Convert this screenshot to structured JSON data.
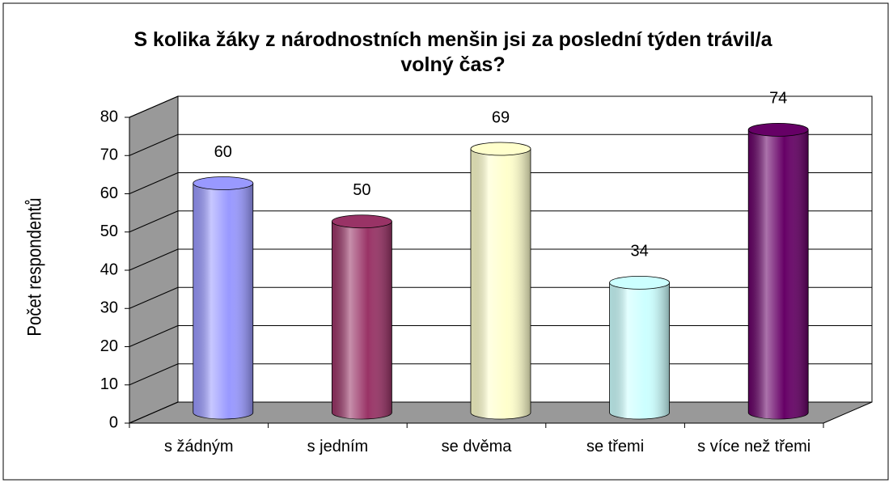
{
  "chart_data": {
    "type": "bar",
    "title": "S kolika žáky z národnostních menšin jsi za poslední týden trávil/a volný čas?",
    "y_label": "Počet respondentů",
    "categories": [
      "s žádným",
      "s jedním",
      "se dvěma",
      "se třemi",
      "s více než třemi"
    ],
    "values": [
      60,
      50,
      69,
      34,
      74
    ],
    "colors": [
      "#9999ff",
      "#993366",
      "#ffffcc",
      "#ccffff",
      "#660066"
    ],
    "ylim": [
      0,
      80
    ],
    "yticks": [
      0,
      10,
      20,
      30,
      40,
      50,
      60,
      70,
      80
    ],
    "grid": true
  }
}
